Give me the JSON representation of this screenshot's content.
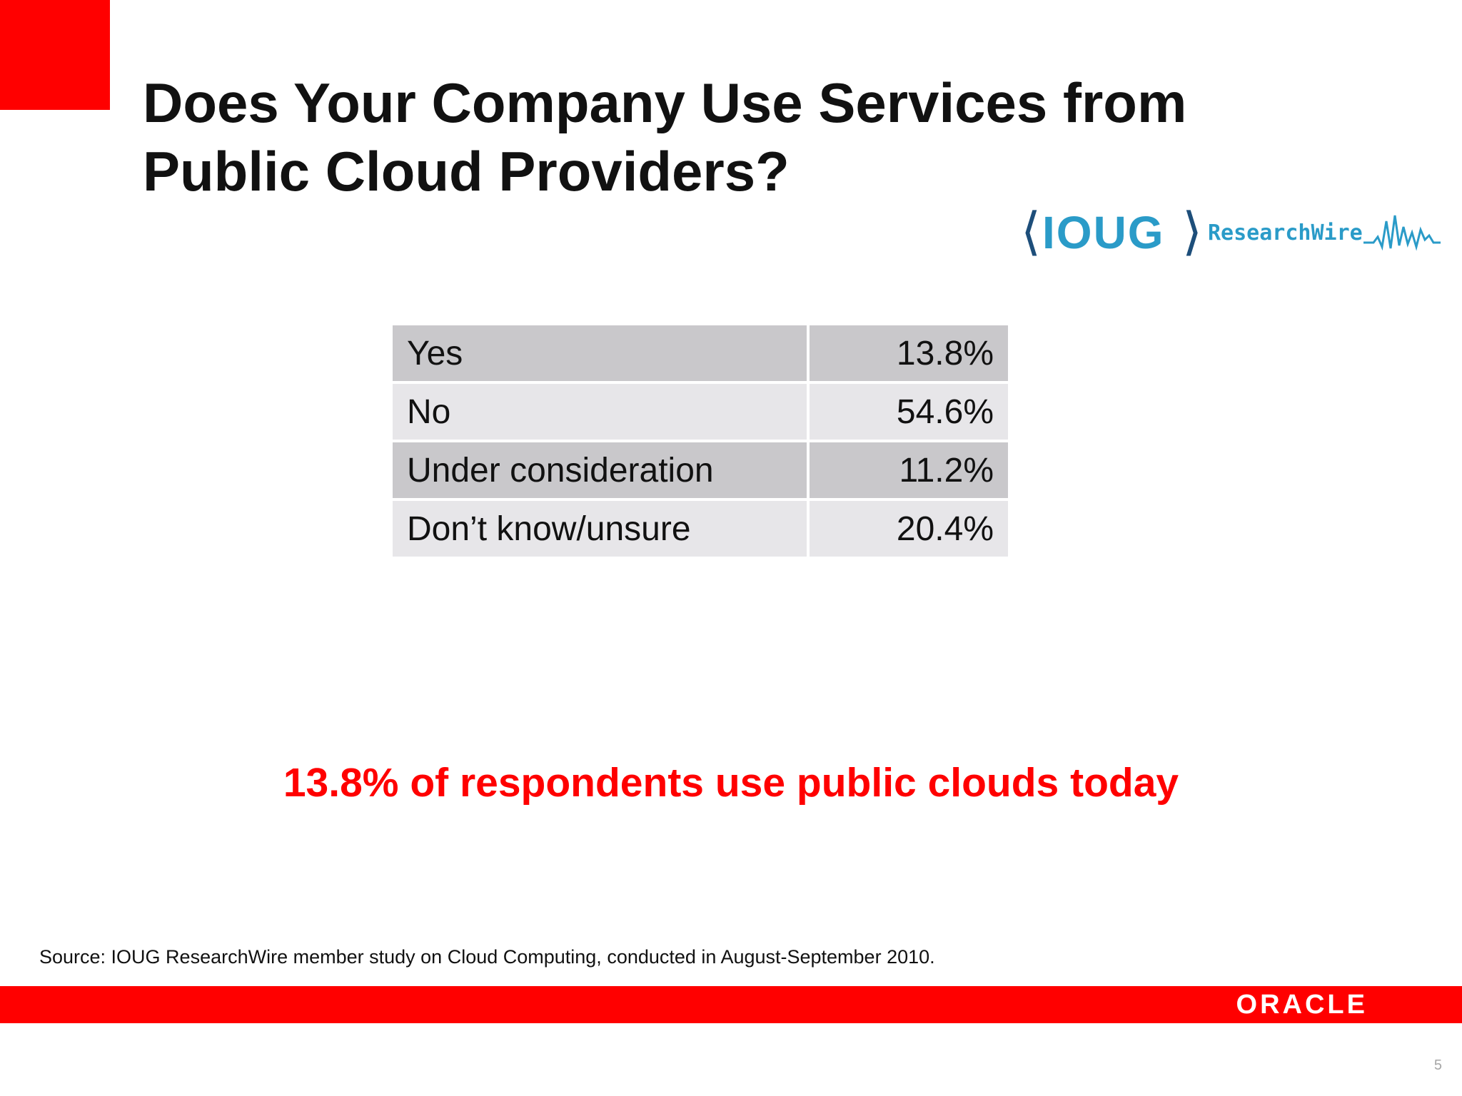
{
  "slide": {
    "title_lines": [
      "Does Your Company Use Services from",
      "Public Cloud Providers?"
    ],
    "highlight": "13.8% of respondents use public clouds today",
    "source": "Source: IOUG ResearchWire member study on Cloud Computing, conducted in August-September 2010.",
    "page_number": "5"
  },
  "logo": {
    "mark": "IOUG",
    "left_bracket": "⟨",
    "right_bracket": "⟩",
    "subtitle": "ResearchWire",
    "wave_icon": "waveform-icon"
  },
  "table": {
    "rows": [
      {
        "label": "Yes",
        "value": "13.8%"
      },
      {
        "label": "No",
        "value": "54.6%"
      },
      {
        "label": "Under consideration",
        "value": "11.2%"
      },
      {
        "label": "Don’t know/unsure",
        "value": "20.4%"
      }
    ]
  },
  "footer": {
    "brand": "ORACLE"
  },
  "colors": {
    "brand_red": "#ff0000",
    "logo_blue": "#2a9bc8",
    "logo_navy": "#1d4e7a",
    "row_dark": "#c9c8cb",
    "row_light": "#e7e6e9"
  }
}
